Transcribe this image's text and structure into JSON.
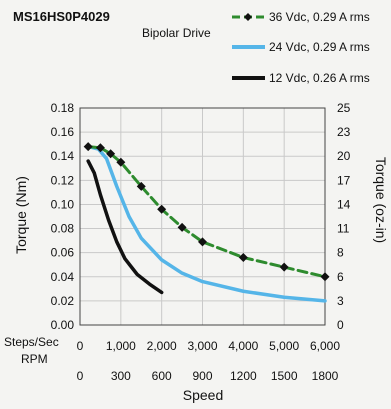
{
  "chart_data": {
    "type": "line",
    "title": "MS16HS0P4029",
    "subtitle": "Bipolar Drive",
    "xlabel": "Speed",
    "ylabel_left": "Torque (Nm)",
    "ylabel_right": "Torque (oz-in)",
    "x_axis_top_label": "Steps/Sec",
    "x_axis_bottom_label": "RPM",
    "x_ticks_steps": [
      "0",
      "1,000",
      "2,000",
      "3,000",
      "4,000",
      "5,000",
      "6,000"
    ],
    "x_ticks_rpm": [
      "0",
      "300",
      "600",
      "900",
      "1200",
      "1500",
      "1800"
    ],
    "y_ticks_left": [
      "0.00",
      "0.02",
      "0.04",
      "0.06",
      "0.08",
      "0.10",
      "0.12",
      "0.14",
      "0.16",
      "0.18"
    ],
    "y_ticks_right": [
      "0",
      "3",
      "6",
      "8",
      "11",
      "14",
      "17",
      "20",
      "23",
      "25"
    ],
    "xlim": [
      0,
      6000
    ],
    "ylim": [
      0,
      0.18
    ],
    "grid": true,
    "legend_position": "top-right",
    "series": [
      {
        "name": "36 Vdc, 0.29 A rms",
        "color": "#2e8b2e",
        "style": "dashed-markers",
        "x": [
          200,
          500,
          750,
          1000,
          1500,
          2000,
          2500,
          3000,
          4000,
          5000,
          6000
        ],
        "y": [
          0.148,
          0.147,
          0.142,
          0.135,
          0.115,
          0.096,
          0.081,
          0.069,
          0.056,
          0.048,
          0.04
        ]
      },
      {
        "name": "24 Vdc, 0.29 A rms",
        "color": "#55b5e8",
        "style": "solid",
        "x": [
          200,
          450,
          650,
          900,
          1200,
          1500,
          2000,
          2500,
          3000,
          4000,
          5000,
          6000
        ],
        "y": [
          0.148,
          0.146,
          0.138,
          0.115,
          0.09,
          0.072,
          0.054,
          0.043,
          0.036,
          0.028,
          0.023,
          0.02
        ]
      },
      {
        "name": "12 Vdc, 0.26 A rms",
        "color": "#111111",
        "style": "solid",
        "x": [
          200,
          350,
          500,
          700,
          900,
          1100,
          1400,
          1700,
          2000
        ],
        "y": [
          0.136,
          0.126,
          0.108,
          0.087,
          0.069,
          0.055,
          0.042,
          0.034,
          0.027
        ]
      }
    ]
  }
}
